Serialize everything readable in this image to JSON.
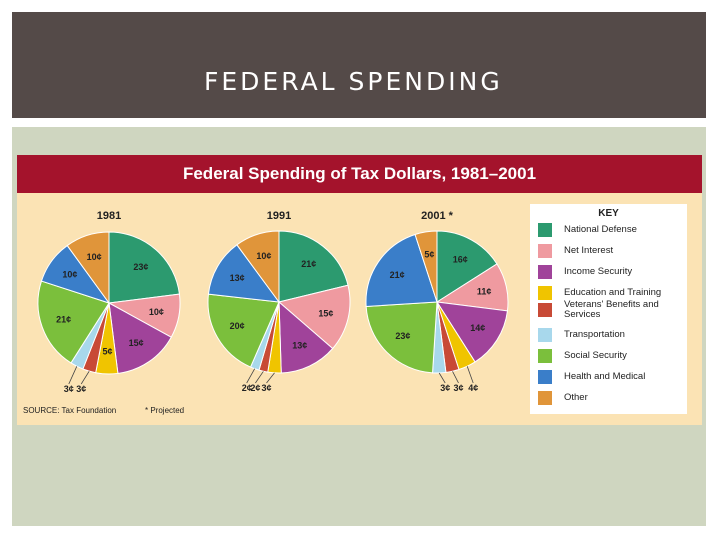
{
  "slide": {
    "title": "FEDERAL SPENDING"
  },
  "chart_data": {
    "type": "pie",
    "title": "Federal Spending of Tax Dollars, 1981–2001",
    "categories": [
      "National Defense",
      "Net Interest",
      "Income Security",
      "Education and Training",
      "Veterans' Benefits and Services",
      "Transportation",
      "Social Security",
      "Health and Medical",
      "Other"
    ],
    "colors": [
      "#2c9a6f",
      "#ef9aa0",
      "#a0439a",
      "#f0c400",
      "#c84a36",
      "#a8d8ec",
      "#7bbf3c",
      "#3a7ec9",
      "#e0953a"
    ],
    "legend": {
      "title": "KEY",
      "placement": "right"
    },
    "source": "SOURCE: Tax Foundation",
    "note": "* Projected",
    "series": [
      {
        "name": "1981",
        "values": [
          23,
          10,
          15,
          5,
          3,
          3,
          21,
          10,
          10
        ],
        "labels": [
          "23¢",
          "10¢",
          "15¢",
          "5¢",
          "3¢",
          "3¢",
          "21¢",
          "10¢",
          "10¢"
        ]
      },
      {
        "name": "1991",
        "values": [
          21,
          15,
          13,
          3,
          2,
          2,
          20,
          13,
          10
        ],
        "labels": [
          "21¢",
          "15¢",
          "13¢",
          "3¢",
          "2¢",
          "2¢",
          "20¢",
          "13¢",
          "10¢"
        ]
      },
      {
        "name": "2001 *",
        "values": [
          16,
          11,
          14,
          4,
          3,
          3,
          23,
          21,
          5
        ],
        "labels": [
          "16¢",
          "11¢",
          "14¢",
          "4¢",
          "3¢",
          "3¢",
          "23¢",
          "21¢",
          "5¢"
        ]
      }
    ]
  }
}
